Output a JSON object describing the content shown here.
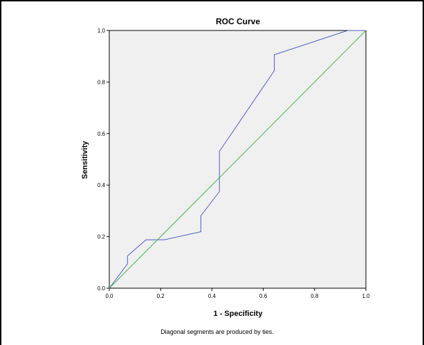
{
  "chart_data": {
    "type": "line",
    "title": "ROC Curve",
    "xlabel": "1 - Specificity",
    "ylabel": "Sensitivity",
    "xlim": [
      0.0,
      1.0
    ],
    "ylim": [
      0.0,
      1.0
    ],
    "x_ticks": [
      "0.0",
      "0.2",
      "0.4",
      "0.6",
      "0.8",
      "1.0"
    ],
    "y_ticks": [
      "0.0",
      "0.2",
      "0.4",
      "0.6",
      "0.8",
      "1.0"
    ],
    "grid": false,
    "legend": "none",
    "plot_background": "#f0f0f0",
    "series": [
      {
        "color": "#4b5cc4",
        "x": [
          0.0,
          0.071,
          0.071,
          0.143,
          0.214,
          0.357,
          0.357,
          0.429,
          0.429,
          0.643,
          0.643,
          0.929,
          1.0
        ],
        "y": [
          0.0,
          0.094,
          0.125,
          0.188,
          0.188,
          0.219,
          0.281,
          0.375,
          0.531,
          0.844,
          0.906,
          1.0,
          1.0
        ]
      },
      {
        "color": "#3cb44b",
        "x": [
          0.0,
          1.0
        ],
        "y": [
          0.0,
          1.0
        ]
      }
    ],
    "footnote": "Diagonal segments are produced by ties."
  }
}
